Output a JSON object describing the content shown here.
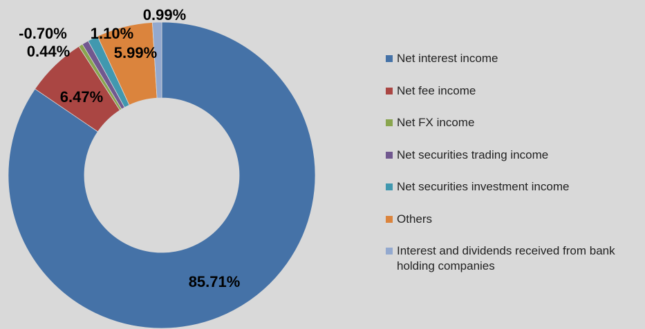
{
  "chart_data": {
    "type": "pie",
    "donut": true,
    "categories": [
      "Net interest income",
      "Net fee income",
      "Net FX income",
      "Net securities trading income",
      "Net securities investment income",
      "Others",
      "Interest and dividends received from bank holding companies"
    ],
    "values": [
      85.71,
      6.47,
      0.44,
      -0.7,
      1.1,
      5.99,
      0.99
    ],
    "data_labels": [
      "85.71%",
      "6.47%",
      "0.44%",
      "-0.70%",
      "1.10%",
      "5.99%",
      "0.99%"
    ],
    "colors": [
      "#4572a7",
      "#aa4643",
      "#89a54e",
      "#71588f",
      "#4198af",
      "#db843d",
      "#93a9cf"
    ],
    "legend_position": "right",
    "title": ""
  }
}
